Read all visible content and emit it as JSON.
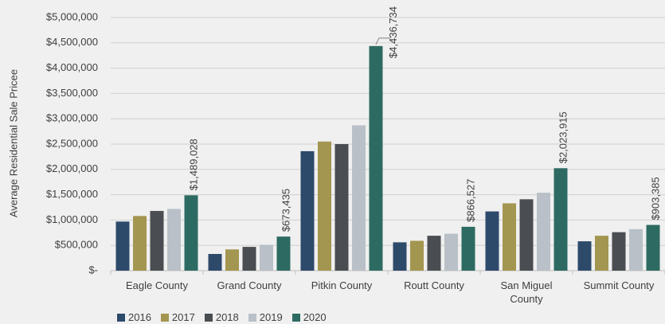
{
  "chart_data": {
    "type": "bar",
    "y_label": "Average Residential Sale Pricee",
    "categories": [
      "Eagle County",
      "Grand County",
      "Pitkin County",
      "Routt County",
      "San Miguel County",
      "Summit County"
    ],
    "series": [
      {
        "name": "2016",
        "color": "#2e4a6b",
        "values": [
          970000,
          330000,
          2360000,
          560000,
          1170000,
          580000
        ]
      },
      {
        "name": "2017",
        "color": "#a39650",
        "values": [
          1080000,
          420000,
          2550000,
          590000,
          1330000,
          690000
        ]
      },
      {
        "name": "2018",
        "color": "#4a4d51",
        "values": [
          1180000,
          470000,
          2500000,
          690000,
          1410000,
          760000
        ]
      },
      {
        "name": "2019",
        "color": "#b9c0c7",
        "values": [
          1220000,
          510000,
          2870000,
          730000,
          1540000,
          820000
        ]
      },
      {
        "name": "2020",
        "color": "#2d6b62",
        "values": [
          1489028,
          673435,
          4436734,
          866527,
          2023915,
          903385
        ],
        "value_labels": [
          "$1,489,028",
          "$673,435",
          "$4,436,734",
          "$866,527",
          "$2,023,915",
          "$903,385"
        ]
      }
    ],
    "ylim": [
      0,
      5000000
    ],
    "yticks": [
      {
        "value": 0,
        "label": "$-"
      },
      {
        "value": 500000,
        "label": "$500,000"
      },
      {
        "value": 1000000,
        "label": "$1,000,000"
      },
      {
        "value": 1500000,
        "label": "$1,500,000"
      },
      {
        "value": 2000000,
        "label": "$2,000,000"
      },
      {
        "value": 2500000,
        "label": "$2,500,000"
      },
      {
        "value": 3000000,
        "label": "$3,000,000"
      },
      {
        "value": 3500000,
        "label": "$3,500,000"
      },
      {
        "value": 4000000,
        "label": "$4,000,000"
      },
      {
        "value": 4500000,
        "label": "$4,500,000"
      },
      {
        "value": 5000000,
        "label": "$5,000,000"
      }
    ],
    "grid": true
  }
}
